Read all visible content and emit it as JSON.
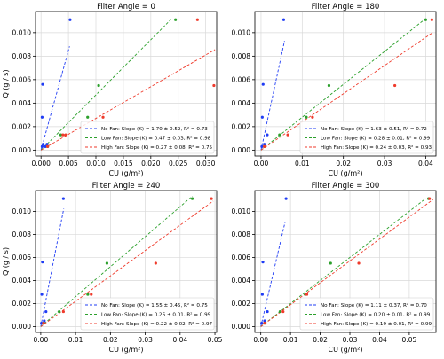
{
  "colors": {
    "no_fan": "#1f3cf5",
    "low_fan": "#2ca02c",
    "high_fan": "#ef3b2c",
    "grid": "#d9d9d9",
    "axis": "#000000"
  },
  "chart_data": [
    {
      "type": "scatter",
      "title": "Filter Angle = 0",
      "xlabel": "CU (g/m²)",
      "ylabel": "Q (g / s)",
      "xlim": [
        -0.001,
        0.032
      ],
      "ylim": [
        -0.0005,
        0.0118
      ],
      "xticks": [
        0.0,
        0.005,
        0.01,
        0.015,
        0.02,
        0.025,
        0.03
      ],
      "xtick_labels": [
        "0.000",
        "0.005",
        "0.010",
        "0.015",
        "0.020",
        "0.025",
        "0.030"
      ],
      "yticks": [
        0.0,
        0.002,
        0.004,
        0.006,
        0.008,
        0.01
      ],
      "ytick_labels": [
        "0.000",
        "0.002",
        "0.004",
        "0.006",
        "0.008",
        "0.010"
      ],
      "grid": true,
      "legend_position": "bottom-right",
      "series": [
        {
          "name": "No Fan",
          "color_key": "no_fan",
          "points": [
            [
              0.0002,
              0.0003
            ],
            [
              0.0002,
              0.0028
            ],
            [
              0.0003,
              0.0056
            ],
            [
              0.0004,
              0.0005
            ],
            [
              0.0008,
              0.0003
            ],
            [
              0.0011,
              0.0005
            ],
            [
              0.0053,
              0.0111
            ]
          ],
          "fit": {
            "slope": 1.7,
            "intercept": 0.0,
            "x_end": 0.0052
          }
        },
        {
          "name": "Low Fan",
          "color_key": "low_fan",
          "points": [
            [
              0.0012,
              0.0003
            ],
            [
              0.0036,
              0.0013
            ],
            [
              0.0085,
              0.0028
            ],
            [
              0.0105,
              0.0055
            ],
            [
              0.0245,
              0.0111
            ]
          ],
          "fit": {
            "slope": 0.47,
            "intercept": 0.0,
            "x_end": 0.0238
          }
        },
        {
          "name": "High Fan",
          "color_key": "high_fan",
          "points": [
            [
              0.0012,
              0.0003
            ],
            [
              0.004,
              0.0013
            ],
            [
              0.0045,
              0.0013
            ],
            [
              0.0113,
              0.0028
            ],
            [
              0.0285,
              0.0111
            ],
            [
              0.0315,
              0.0055
            ]
          ],
          "fit": {
            "slope": 0.27,
            "intercept": 0.0,
            "x_end": 0.0317
          }
        }
      ],
      "legend": [
        "No Fan: Slope (K) = 1.70 ± 0.52, R² = 0.73",
        "Low Fan: Slope (K) = 0.47 ± 0.03, R² = 0.98",
        "High Fan: Slope (K) = 0.27 ± 0.08, R² = 0.75"
      ]
    },
    {
      "type": "scatter",
      "title": "Filter Angle = 180",
      "xlabel": "CU (g/m²)",
      "ylabel": "",
      "xlim": [
        -0.0015,
        0.0425
      ],
      "ylim": [
        -0.0005,
        0.0118
      ],
      "xticks": [
        0.0,
        0.01,
        0.02,
        0.03,
        0.04
      ],
      "xtick_labels": [
        "0.00",
        "0.01",
        "0.02",
        "0.03",
        "0.04"
      ],
      "yticks": [
        0.0,
        0.002,
        0.004,
        0.006,
        0.008,
        0.01
      ],
      "ytick_labels": [
        "0.000",
        "0.002",
        "0.004",
        "0.006",
        "0.008",
        "0.010"
      ],
      "grid": true,
      "legend_position": "bottom-right",
      "series": [
        {
          "name": "No Fan",
          "color_key": "no_fan",
          "points": [
            [
              0.0002,
              0.0003
            ],
            [
              0.0003,
              0.0028
            ],
            [
              0.0005,
              0.0056
            ],
            [
              0.0008,
              0.0005
            ],
            [
              0.0015,
              0.0013
            ],
            [
              0.0055,
              0.0111
            ]
          ],
          "fit": {
            "slope": 1.63,
            "intercept": 0.0,
            "x_end": 0.0057
          }
        },
        {
          "name": "Low Fan",
          "color_key": "low_fan",
          "points": [
            [
              0.0008,
              0.0003
            ],
            [
              0.0045,
              0.0013
            ],
            [
              0.011,
              0.0028
            ],
            [
              0.0165,
              0.0055
            ],
            [
              0.04,
              0.0111
            ]
          ],
          "fit": {
            "slope": 0.28,
            "intercept": 0.0,
            "x_end": 0.0398
          }
        },
        {
          "name": "High Fan",
          "color_key": "high_fan",
          "points": [
            [
              0.0008,
              0.0003
            ],
            [
              0.0065,
              0.0013
            ],
            [
              0.0125,
              0.0028
            ],
            [
              0.0325,
              0.0055
            ],
            [
              0.0415,
              0.0111
            ]
          ],
          "fit": {
            "slope": 0.24,
            "intercept": 0.0,
            "x_end": 0.0418
          }
        }
      ],
      "legend": [
        "No Fan: Slope (K) = 1.63 ± 0.51, R² = 0.72",
        "Low Fan: Slope (K) = 0.28 ± 0.01, R² = 0.99",
        "High Fan: Slope (K) = 0.24 ± 0.03, R² = 0.93"
      ]
    },
    {
      "type": "scatter",
      "title": "Filter Angle = 240",
      "xlabel": "CU (g/m²)",
      "ylabel": "Q (g / s)",
      "xlim": [
        -0.0015,
        0.0505
      ],
      "ylim": [
        -0.0005,
        0.0118
      ],
      "xticks": [
        0.0,
        0.01,
        0.02,
        0.03,
        0.04,
        0.05
      ],
      "xtick_labels": [
        "0.00",
        "0.01",
        "0.02",
        "0.03",
        "0.04",
        "0.05"
      ],
      "yticks": [
        0.0,
        0.002,
        0.004,
        0.006,
        0.008,
        0.01
      ],
      "ytick_labels": [
        "0.000",
        "0.002",
        "0.004",
        "0.006",
        "0.008",
        "0.010"
      ],
      "grid": true,
      "legend_position": "bottom-right",
      "series": [
        {
          "name": "No Fan",
          "color_key": "no_fan",
          "points": [
            [
              0.0002,
              0.0003
            ],
            [
              0.0003,
              0.0028
            ],
            [
              0.0005,
              0.0056
            ],
            [
              0.001,
              0.0005
            ],
            [
              0.0015,
              0.0013
            ],
            [
              0.0065,
              0.0111
            ]
          ],
          "fit": {
            "slope": 1.55,
            "intercept": 0.0,
            "x_end": 0.0066
          }
        },
        {
          "name": "Low Fan",
          "color_key": "low_fan",
          "points": [
            [
              0.0008,
              0.0003
            ],
            [
              0.0053,
              0.0013
            ],
            [
              0.0135,
              0.0028
            ],
            [
              0.019,
              0.0055
            ],
            [
              0.0435,
              0.0111
            ]
          ],
          "fit": {
            "slope": 0.26,
            "intercept": 0.0,
            "x_end": 0.0435
          }
        },
        {
          "name": "High Fan",
          "color_key": "high_fan",
          "points": [
            [
              0.0008,
              0.0003
            ],
            [
              0.0065,
              0.0013
            ],
            [
              0.0145,
              0.0028
            ],
            [
              0.033,
              0.0055
            ],
            [
              0.049,
              0.0111
            ]
          ],
          "fit": {
            "slope": 0.22,
            "intercept": 0.0,
            "x_end": 0.0495
          }
        }
      ],
      "legend": [
        "No Fan: Slope (K) = 1.55 ± 0.45, R² = 0.75",
        "Low Fan: Slope (K) = 0.26 ± 0.01, R² = 0.99",
        "High Fan: Slope (K) = 0.22 ± 0.02, R² = 0.97"
      ]
    },
    {
      "type": "scatter",
      "title": "Filter Angle = 300",
      "xlabel": "CU (g/m²)",
      "ylabel": "",
      "xlim": [
        -0.002,
        0.059
      ],
      "ylim": [
        -0.0005,
        0.0118
      ],
      "xticks": [
        0.0,
        0.01,
        0.02,
        0.03,
        0.04,
        0.05
      ],
      "xtick_labels": [
        "0.00",
        "0.01",
        "0.02",
        "0.03",
        "0.04",
        "0.05"
      ],
      "yticks": [
        0.0,
        0.002,
        0.004,
        0.006,
        0.008,
        0.01
      ],
      "ytick_labels": [
        "0.000",
        "0.002",
        "0.004",
        "0.006",
        "0.008",
        "0.010"
      ],
      "grid": true,
      "legend_position": "bottom-right",
      "series": [
        {
          "name": "No Fan",
          "color_key": "no_fan",
          "points": [
            [
              0.0003,
              0.0003
            ],
            [
              0.0005,
              0.0028
            ],
            [
              0.0007,
              0.0056
            ],
            [
              0.0013,
              0.0005
            ],
            [
              0.0022,
              0.0013
            ],
            [
              0.0085,
              0.0111
            ]
          ],
          "fit": {
            "slope": 1.11,
            "intercept": 0.0,
            "x_end": 0.0082
          }
        },
        {
          "name": "Low Fan",
          "color_key": "low_fan",
          "points": [
            [
              0.0013,
              0.0003
            ],
            [
              0.0065,
              0.0013
            ],
            [
              0.015,
              0.0028
            ],
            [
              0.0235,
              0.0055
            ],
            [
              0.0565,
              0.0111
            ]
          ],
          "fit": {
            "slope": 0.2,
            "intercept": 0.0,
            "x_end": 0.0555
          }
        },
        {
          "name": "High Fan",
          "color_key": "high_fan",
          "points": [
            [
              0.0013,
              0.0003
            ],
            [
              0.0075,
              0.0013
            ],
            [
              0.0155,
              0.0028
            ],
            [
              0.033,
              0.0055
            ],
            [
              0.0568,
              0.0111
            ]
          ],
          "fit": {
            "slope": 0.19,
            "intercept": 0.0,
            "x_end": 0.058
          }
        }
      ],
      "legend": [
        "No Fan: Slope (K) = 1.11 ± 0.37, R² = 0.70",
        "Low Fan: Slope (K) = 0.20 ± 0.01, R² = 0.99",
        "High Fan: Slope (K) = 0.19 ± 0.01, R² = 0.99"
      ]
    }
  ]
}
